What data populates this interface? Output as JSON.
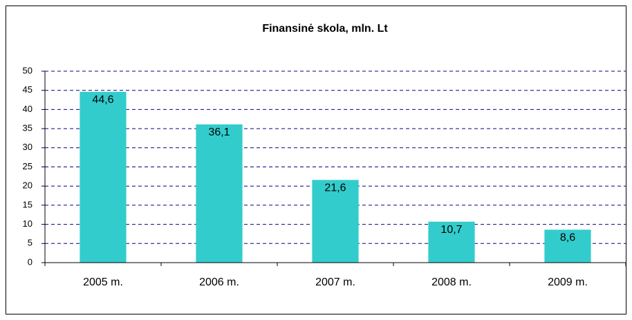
{
  "chart_data": {
    "type": "bar",
    "title": "Finansinė skola, mln. Lt",
    "categories": [
      "2005 m.",
      "2006 m.",
      "2007 m.",
      "2008 m.",
      "2009 m."
    ],
    "values": [
      44.6,
      36.1,
      21.6,
      10.7,
      8.6
    ],
    "value_labels": [
      "44,6",
      "36,1",
      "21,6",
      "10,7",
      "8,6"
    ],
    "color": "#33cccc",
    "ylim": [
      0,
      50
    ],
    "yticks": [
      0,
      5,
      10,
      15,
      20,
      25,
      30,
      35,
      40,
      45,
      50
    ],
    "grid": true
  }
}
